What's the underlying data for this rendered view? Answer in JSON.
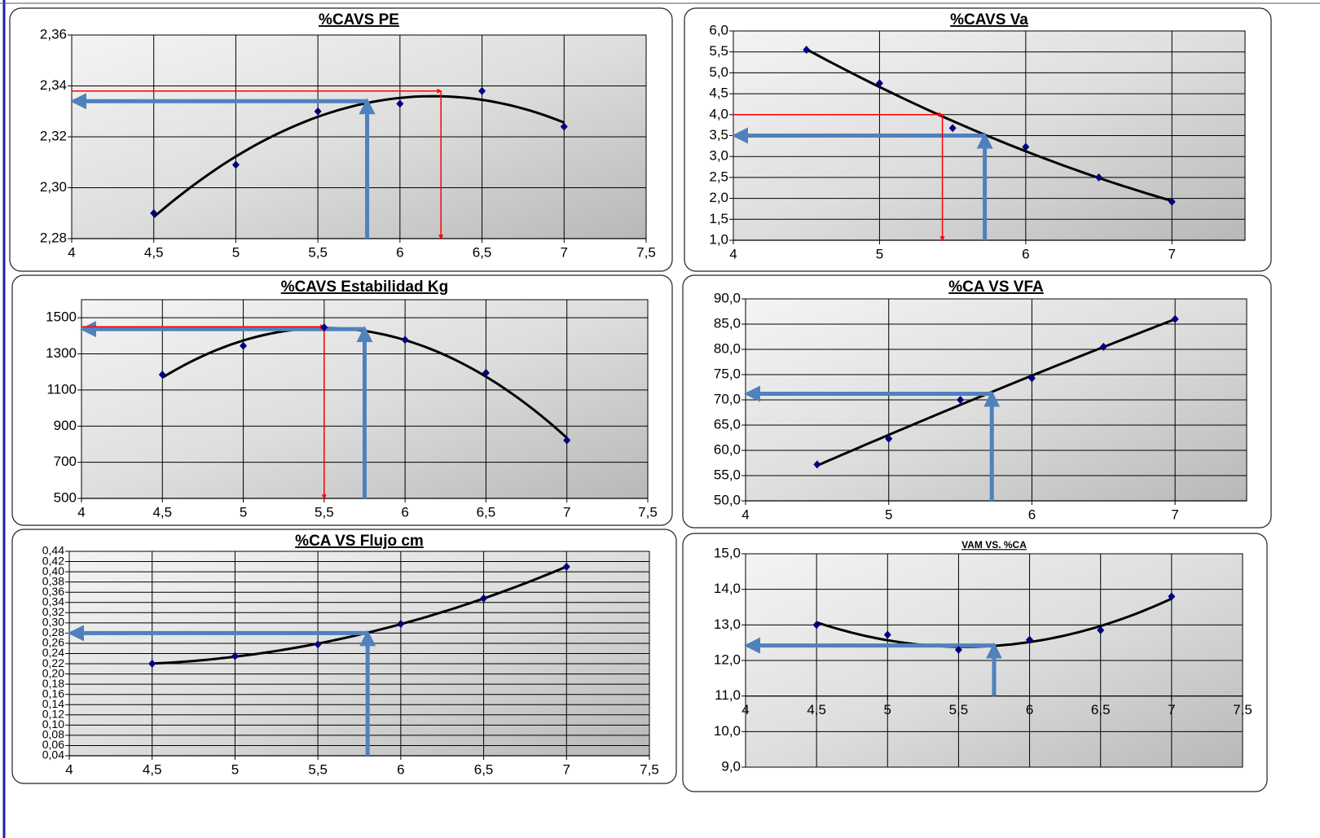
{
  "chart_data": [
    {
      "type": "scatter",
      "title": "%CAVS PE",
      "x": [
        4.5,
        5,
        5.5,
        6,
        6.5,
        7
      ],
      "values": [
        2.29,
        2.309,
        2.33,
        2.333,
        2.338,
        2.324
      ],
      "color": "#000080",
      "line_color": "#000000",
      "xlim": [
        4,
        7.5
      ],
      "xticks": [
        4,
        {
          "value": 4.5,
          "label": "4,5"
        },
        5,
        {
          "value": 5.5,
          "label": "5,5"
        },
        6,
        {
          "value": 6.5,
          "label": "6,5"
        },
        7,
        {
          "value": 7.5,
          "label": "7,5"
        }
      ],
      "ylim": [
        2.28,
        2.36
      ],
      "yticks": [
        {
          "value": 2.28,
          "label": "2,28"
        },
        {
          "value": 2.3,
          "label": "2,30"
        },
        {
          "value": 2.32,
          "label": "2,32"
        },
        {
          "value": 2.34,
          "label": "2,34"
        },
        {
          "value": 2.36,
          "label": "2,36"
        }
      ],
      "grid": true,
      "arrows": [
        {
          "x": 5.8,
          "y": 2.334,
          "color": "#4f81bd",
          "direction": "up-left"
        },
        {
          "x": 6.25,
          "y": 2.338,
          "color": "#ff0000",
          "direction": "right-down"
        }
      ]
    },
    {
      "type": "scatter",
      "title": "%CAVS Va",
      "x": [
        4.5,
        5,
        5.5,
        6,
        6.5,
        7
      ],
      "values": [
        5.55,
        4.75,
        3.68,
        3.23,
        2.5,
        1.92
      ],
      "color": "#000080",
      "line_color": "#000000",
      "xlim": [
        4,
        7.5
      ],
      "xticks": [
        4,
        5,
        6,
        7
      ],
      "ylim": [
        1,
        6
      ],
      "yticks": [
        {
          "value": 1,
          "label": "1,0"
        },
        {
          "value": 1.5,
          "label": "1,5"
        },
        {
          "value": 2,
          "label": "2,0"
        },
        {
          "value": 2.5,
          "label": "2,5"
        },
        {
          "value": 3,
          "label": "3,0"
        },
        {
          "value": 3.5,
          "label": "3,5"
        },
        {
          "value": 4,
          "label": "4,0"
        },
        {
          "value": 4.5,
          "label": "4,5"
        },
        {
          "value": 5,
          "label": "5,0"
        },
        {
          "value": 5.5,
          "label": "5,5"
        },
        {
          "value": 6,
          "label": "6,0"
        }
      ],
      "grid": true,
      "arrows": [
        {
          "x": 5.72,
          "y": 3.5,
          "color": "#4f81bd",
          "direction": "up-left"
        },
        {
          "x": 5.43,
          "y": 4.0,
          "color": "#ff0000",
          "direction": "right-down"
        }
      ]
    },
    {
      "type": "scatter",
      "title": "%CAVS Estabilidad Kg",
      "x": [
        4.5,
        5,
        5.5,
        6,
        6.5,
        7
      ],
      "values": [
        1185,
        1345,
        1447,
        1378,
        1195,
        822
      ],
      "color": "#000080",
      "line_color": "#000000",
      "xlim": [
        4,
        7.5
      ],
      "xticks": [
        4,
        {
          "value": 4.5,
          "label": "4,5"
        },
        5,
        {
          "value": 5.5,
          "label": "5,5"
        },
        6,
        {
          "value": 6.5,
          "label": "6,5"
        },
        7,
        {
          "value": 7.5,
          "label": "7,5"
        }
      ],
      "ylim": [
        500,
        1600
      ],
      "yticks": [
        500,
        700,
        900,
        1100,
        1300,
        1500
      ],
      "grid": true,
      "arrows": [
        {
          "x": 5.75,
          "y": 1437,
          "color": "#4f81bd",
          "direction": "up-left"
        },
        {
          "x": 5.5,
          "y": 1450,
          "color": "#ff0000",
          "direction": "right-down"
        }
      ]
    },
    {
      "type": "scatter",
      "title": "%CA VS VFA",
      "x": [
        4.5,
        5,
        5.5,
        6,
        6.5,
        7
      ],
      "values": [
        57.2,
        62.3,
        70,
        74.3,
        80.5,
        86
      ],
      "color": "#000080",
      "line_color": "#000000",
      "xlim": [
        4,
        7.5
      ],
      "xticks": [
        4,
        5,
        6,
        7
      ],
      "ylim": [
        50,
        90
      ],
      "yticks": [
        {
          "value": 50,
          "label": "50,0"
        },
        {
          "value": 55,
          "label": "55,0"
        },
        {
          "value": 60,
          "label": "60,0"
        },
        {
          "value": 65,
          "label": "65,0"
        },
        {
          "value": 70,
          "label": "70,0"
        },
        {
          "value": 75,
          "label": "75,0"
        },
        {
          "value": 80,
          "label": "80,0"
        },
        {
          "value": 85,
          "label": "85,0"
        },
        {
          "value": 90,
          "label": "90,0"
        }
      ],
      "grid": true,
      "arrows": [
        {
          "x": 5.72,
          "y": 71.2,
          "color": "#4f81bd",
          "direction": "up-left"
        }
      ]
    },
    {
      "type": "scatter",
      "title": "%CA VS Flujo cm",
      "x": [
        4.5,
        5,
        5.5,
        6,
        6.5,
        7
      ],
      "values": [
        0.22,
        0.235,
        0.258,
        0.298,
        0.348,
        0.41
      ],
      "color": "#000080",
      "line_color": "#000000",
      "xlim": [
        4,
        7.5
      ],
      "xticks": [
        4,
        {
          "value": 4.5,
          "label": "4,5"
        },
        5,
        {
          "value": 5.5,
          "label": "5,5"
        },
        6,
        {
          "value": 6.5,
          "label": "6,5"
        },
        7,
        {
          "value": 7.5,
          "label": "7,5"
        }
      ],
      "ylim": [
        0.04,
        0.44
      ],
      "yticks": [
        {
          "value": 0.04,
          "label": "0,04"
        },
        {
          "value": 0.06,
          "label": "0,06"
        },
        {
          "value": 0.08,
          "label": "0,08"
        },
        {
          "value": 0.1,
          "label": "0,10"
        },
        {
          "value": 0.12,
          "label": "0,12"
        },
        {
          "value": 0.14,
          "label": "0,14"
        },
        {
          "value": 0.16,
          "label": "0,16"
        },
        {
          "value": 0.18,
          "label": "0,18"
        },
        {
          "value": 0.2,
          "label": "0,20"
        },
        {
          "value": 0.22,
          "label": "0,22"
        },
        {
          "value": 0.24,
          "label": "0,24"
        },
        {
          "value": 0.26,
          "label": "0,26"
        },
        {
          "value": 0.28,
          "label": "0,28"
        },
        {
          "value": 0.3,
          "label": "0,30"
        },
        {
          "value": 0.32,
          "label": "0,32"
        },
        {
          "value": 0.34,
          "label": "0,34"
        },
        {
          "value": 0.36,
          "label": "0,36"
        },
        {
          "value": 0.38,
          "label": "0,38"
        },
        {
          "value": 0.4,
          "label": "0,40"
        },
        {
          "value": 0.42,
          "label": "0,42"
        },
        {
          "value": 0.44,
          "label": "0,44"
        }
      ],
      "grid": true,
      "arrows": [
        {
          "x": 5.8,
          "y": 0.28,
          "color": "#4f81bd",
          "direction": "up-left"
        }
      ]
    },
    {
      "type": "scatter",
      "title": "VAM VS. %CA",
      "x": [
        4.5,
        5,
        5.5,
        6,
        6.5,
        7
      ],
      "values": [
        13.0,
        12.72,
        12.3,
        12.58,
        12.85,
        13.8
      ],
      "color": "#000080",
      "line_color": "#000000",
      "xlim": [
        4,
        7.5
      ],
      "xticks": [
        4,
        {
          "value": 4.5,
          "label": "4,5"
        },
        5,
        {
          "value": 5.5,
          "label": "5,5"
        },
        6,
        {
          "value": 6.5,
          "label": "6,5"
        },
        7,
        {
          "value": 7.5,
          "label": "7,5"
        }
      ],
      "ylim": [
        9,
        15
      ],
      "yticks": [
        {
          "value": 9,
          "label": "9,0"
        },
        {
          "value": 10,
          "label": "10,0"
        },
        {
          "value": 11,
          "label": "11,0"
        },
        {
          "value": 12,
          "label": "12,0"
        },
        {
          "value": 13,
          "label": "13,0"
        },
        {
          "value": 14,
          "label": "14,0"
        },
        {
          "value": 15,
          "label": "15,0"
        }
      ],
      "x_axis_at": 11,
      "grid": true,
      "arrows": [
        {
          "x": 5.75,
          "y": 12.42,
          "color": "#4f81bd",
          "direction": "up-left"
        }
      ]
    }
  ]
}
